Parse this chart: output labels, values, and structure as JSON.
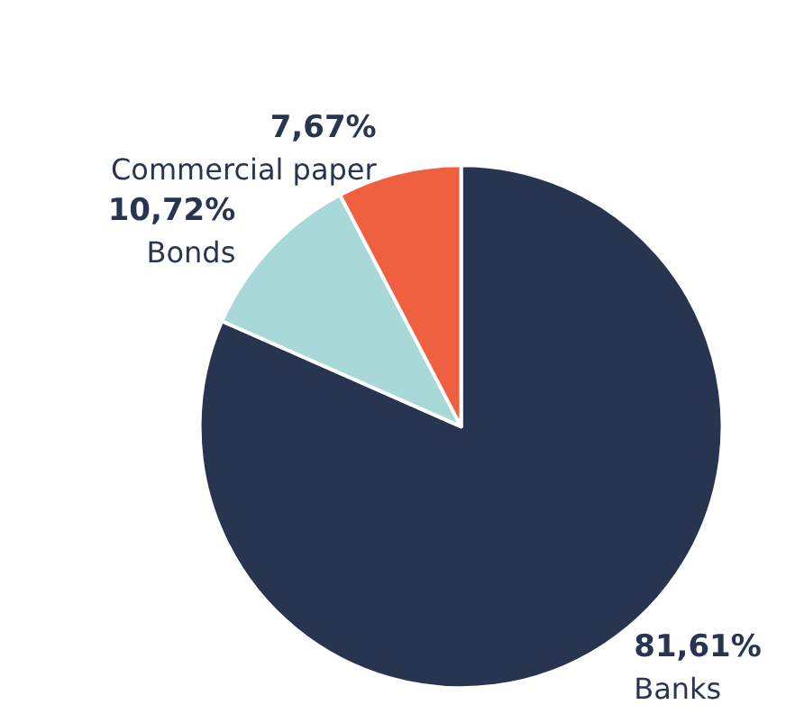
{
  "chart_data": {
    "type": "pie",
    "categories": [
      "Banks",
      "Bonds",
      "Commercial paper"
    ],
    "values": [
      81.61,
      10.72,
      7.67
    ],
    "colors": [
      "#283550",
      "#a8d8d8",
      "#ef6040"
    ],
    "value_labels": [
      "81,61%",
      "10,72%",
      "7,67%"
    ],
    "legend": false
  }
}
